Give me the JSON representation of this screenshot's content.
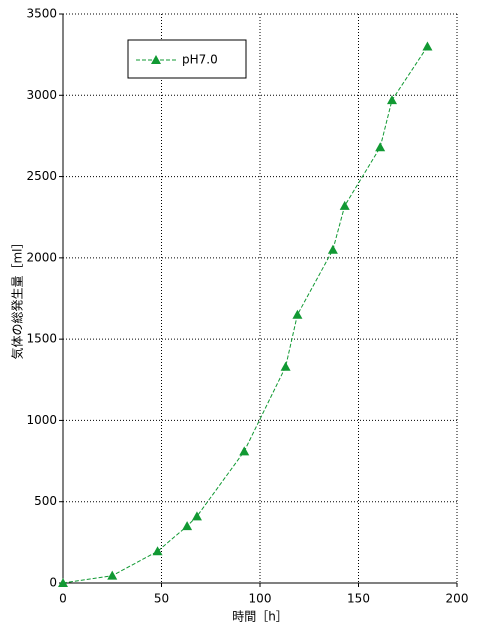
{
  "chart_data": {
    "type": "line",
    "x_label": "時間［h］",
    "y_label": "気体の総発生量［ml］",
    "series": [
      {
        "name": "pH7.0",
        "color": "#119933",
        "x": [
          0,
          25,
          48,
          63,
          68,
          92,
          113,
          119,
          137,
          143,
          161,
          167,
          185
        ],
        "values": [
          0,
          45,
          195,
          350,
          410,
          810,
          1330,
          1650,
          2050,
          2320,
          2680,
          2970,
          3300
        ]
      }
    ],
    "xlim": [
      0,
      200
    ],
    "xticks": [
      0,
      50,
      100,
      150,
      200
    ],
    "ylim": [
      0,
      3500
    ],
    "yticks": [
      0,
      500,
      1000,
      1500,
      2000,
      2500,
      3000,
      3500
    ],
    "grid": true,
    "legend": "upper left"
  }
}
